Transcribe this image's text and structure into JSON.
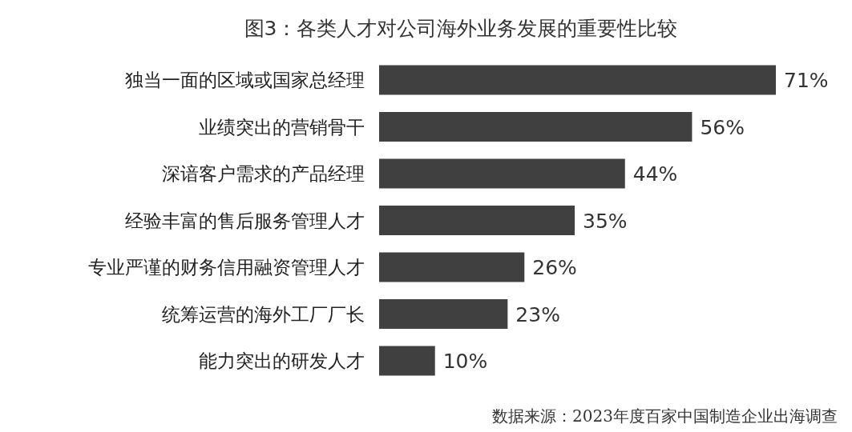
{
  "chart_data": {
    "type": "bar",
    "orientation": "horizontal",
    "title": "图3：各类人才对公司海外业务发展的重要性比较",
    "categories": [
      "独当一面的区域或国家总经理",
      "业绩突出的营销骨干",
      "深谙客户需求的产品经理",
      "经验丰富的售后服务管理人才",
      "专业严谨的财务信用融资管理人才",
      "统筹运营的海外工厂厂长",
      "能力突出的研发人才"
    ],
    "values": [
      71,
      56,
      44,
      35,
      26,
      23,
      10
    ],
    "value_labels": [
      "71%",
      "56%",
      "44%",
      "35%",
      "26%",
      "23%",
      "10%"
    ],
    "color": "#404040",
    "annotations": [
      "数据来源：2023年度百家中国制造企业出海调查"
    ]
  }
}
